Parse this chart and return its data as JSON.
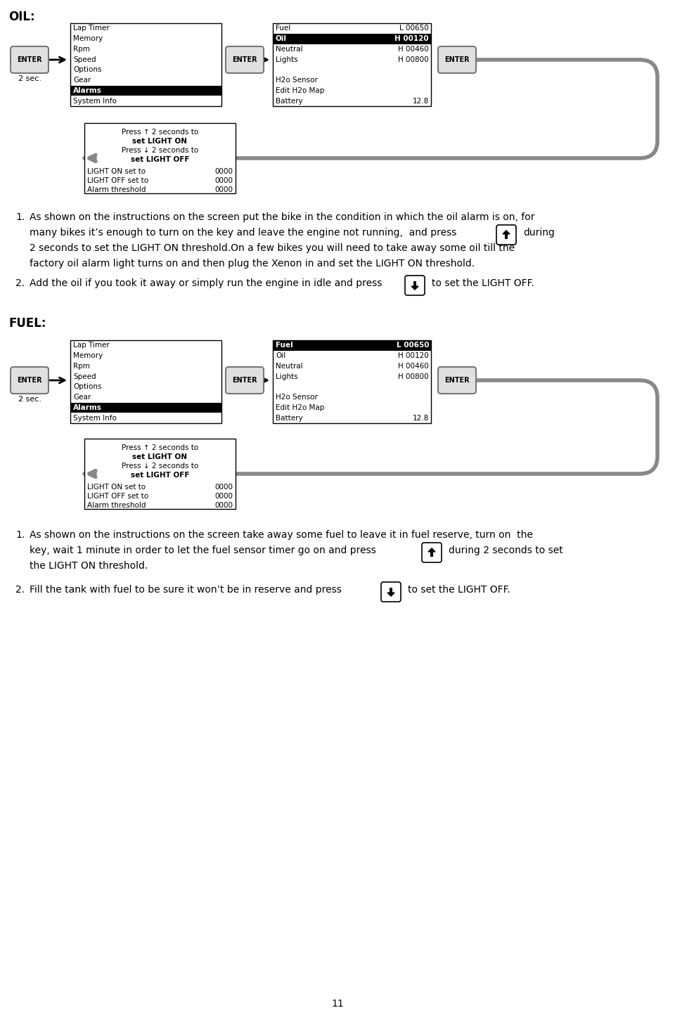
{
  "bg_color": "#ffffff",
  "page_number": "11",
  "oil_label": "OIL:",
  "fuel_label": "FUEL:",
  "two_sec": "2 sec.",
  "enter_text": "ENTER",
  "menu1_items": [
    "Lap Timer",
    "Memory",
    "Rpm",
    "Speed",
    "Options",
    "Gear",
    "Alarms",
    "System Info"
  ],
  "menu1_highlight": 6,
  "menu2_oil_items": [
    "Fuel",
    "Oil",
    "Neutral",
    "Lights",
    "",
    "H2o Sensor",
    "Edit H2o Map",
    "Battery"
  ],
  "menu2_oil_values": [
    "L 00650",
    "H 00120",
    "H 00460",
    "H 00800",
    "",
    "",
    "",
    "12.8"
  ],
  "menu2_oil_highlight": 1,
  "menu2_fuel_items": [
    "Fuel",
    "Oil",
    "Neutral",
    "Lights",
    "",
    "H2o Sensor",
    "Edit H2o Map",
    "Battery"
  ],
  "menu2_fuel_values": [
    "L 00650",
    "H 00120",
    "H 00460",
    "H 00800",
    "",
    "",
    "",
    "12.8"
  ],
  "menu2_fuel_highlight": 0,
  "menu3_lines": [
    "Press ↑ 2 seconds to",
    "set LIGHT ON",
    "Press ↓ 2 seconds to",
    "set LIGHT OFF"
  ],
  "menu3_bottom": [
    [
      "LIGHT ON set to",
      "0000"
    ],
    [
      "LIGHT OFF set to",
      "0000"
    ],
    [
      "Alarm threshold",
      "0000"
    ]
  ],
  "menu1_items_fuel": [
    "Lap Timer",
    "Memory",
    "Rpm",
    "Speed",
    "Options",
    "Gear",
    "Alarms",
    "System Info"
  ],
  "arrow_color": "#888888",
  "enter_bg": "#d8d8d8",
  "enter_border": "#555555"
}
